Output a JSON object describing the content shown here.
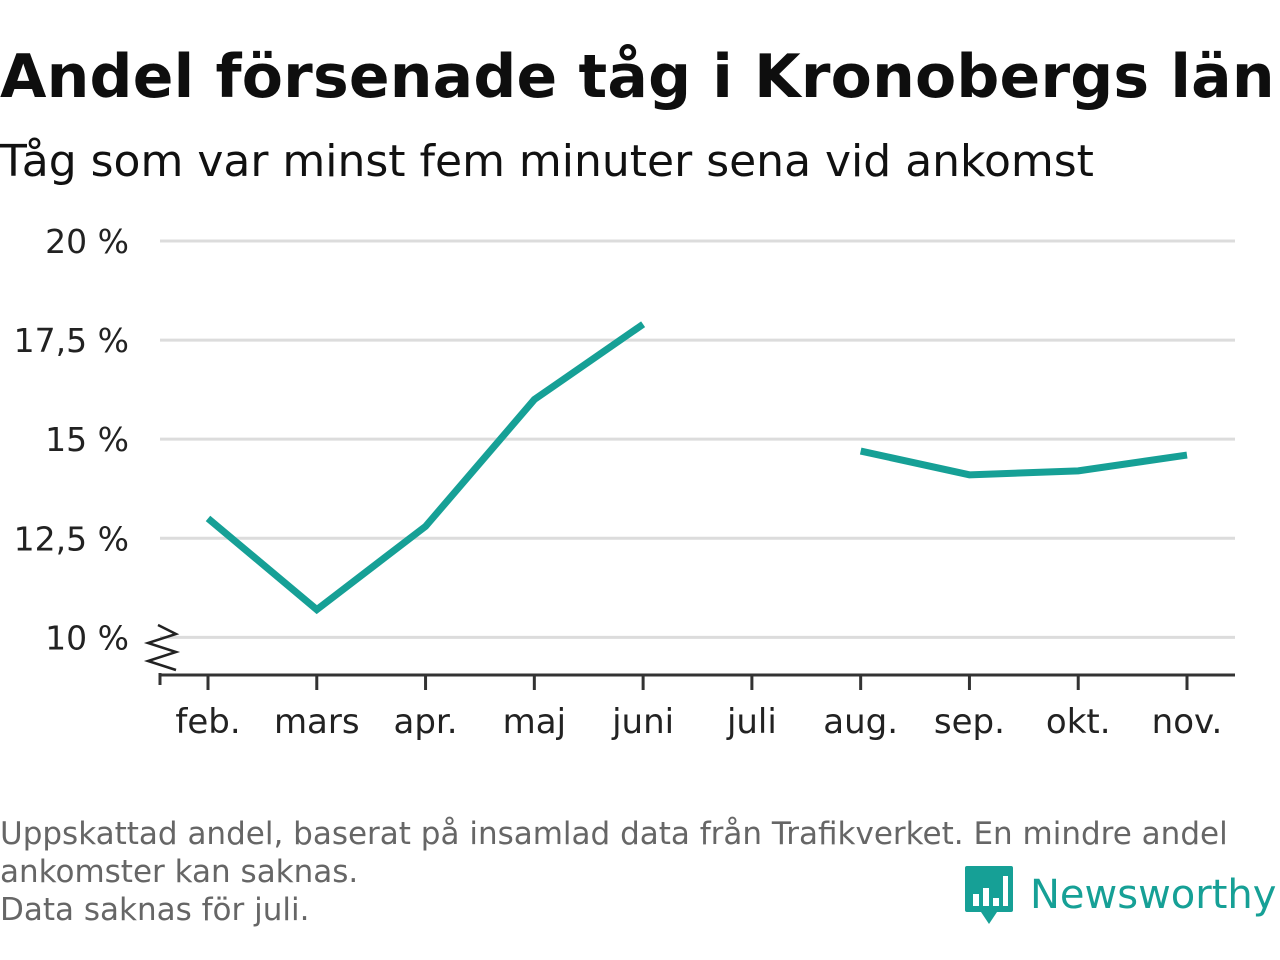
{
  "header": {
    "title": "Andel försenade tåg i Kronobergs län",
    "subtitle": "Tåg som var minst fem minuter sena vid ankomst"
  },
  "chart_data": {
    "type": "line",
    "title": "Andel försenade tåg i Kronobergs län",
    "subtitle": "Tåg som var minst fem minuter sena vid ankomst",
    "xlabel": "",
    "ylabel": "",
    "categories": [
      "feb.",
      "mars",
      "apr.",
      "maj",
      "juni",
      "juli",
      "aug.",
      "sep.",
      "okt.",
      "nov."
    ],
    "series": [
      {
        "values": [
          13.0,
          10.7,
          12.8,
          16.0,
          17.9,
          null,
          14.7,
          14.1,
          14.2,
          14.6
        ]
      }
    ],
    "y_ticks": [
      {
        "value": 10,
        "label": "10 %"
      },
      {
        "value": 12.5,
        "label": "12,5 %"
      },
      {
        "value": 15,
        "label": "15 %"
      },
      {
        "value": 17.5,
        "label": "17,5 %"
      },
      {
        "value": 20,
        "label": "20 %"
      }
    ],
    "ylim": [
      9.05,
      20
    ],
    "grid": true,
    "line_color": "#16a096",
    "axis_break": true
  },
  "footer": {
    "note_lines": [
      "Uppskattad andel, baserat på insamlad data från Trafikverket. En mindre andel",
      "ankomster kan saknas.",
      "Data saknas för juli."
    ],
    "logo_text": "Newsworthy",
    "logo_color": "#16a096",
    "logo_icon": "bar-chart-speech-bubble-icon"
  }
}
